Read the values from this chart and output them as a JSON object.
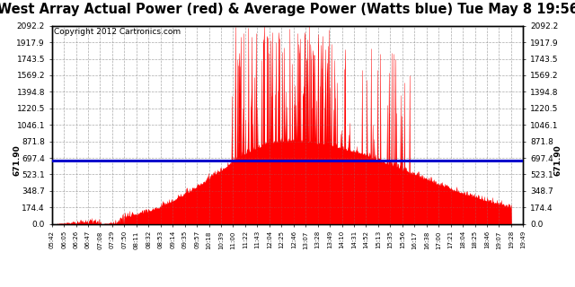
{
  "title": "West Array Actual Power (red) & Average Power (Watts blue) Tue May 8 19:56",
  "copyright": "Copyright 2012 Cartronics.com",
  "average_power": 671.9,
  "y_max": 2092.2,
  "y_min": 0.0,
  "y_ticks": [
    0.0,
    174.4,
    348.7,
    523.1,
    697.4,
    871.8,
    1046.1,
    1220.5,
    1394.8,
    1569.2,
    1743.5,
    1917.9,
    2092.2
  ],
  "background_color": "#ffffff",
  "fill_color": "#ff0000",
  "line_color": "#ff0000",
  "avg_line_color": "#0000cc",
  "grid_color": "#888888",
  "title_fontsize": 10.5,
  "avg_label_fontsize": 7,
  "copyright_fontsize": 6.5,
  "tick_fontsize": 6.5,
  "x_labels": [
    "05:42",
    "06:05",
    "06:26",
    "06:47",
    "07:08",
    "07:29",
    "07:50",
    "08:11",
    "08:32",
    "08:53",
    "09:14",
    "09:35",
    "09:57",
    "10:18",
    "10:39",
    "11:00",
    "11:22",
    "11:43",
    "12:04",
    "12:25",
    "12:46",
    "13:07",
    "13:28",
    "13:49",
    "14:10",
    "14:31",
    "14:52",
    "15:13",
    "15:35",
    "15:56",
    "16:17",
    "16:38",
    "17:00",
    "17:21",
    "18:04",
    "18:25",
    "18:46",
    "19:07",
    "19:28",
    "19:49"
  ]
}
